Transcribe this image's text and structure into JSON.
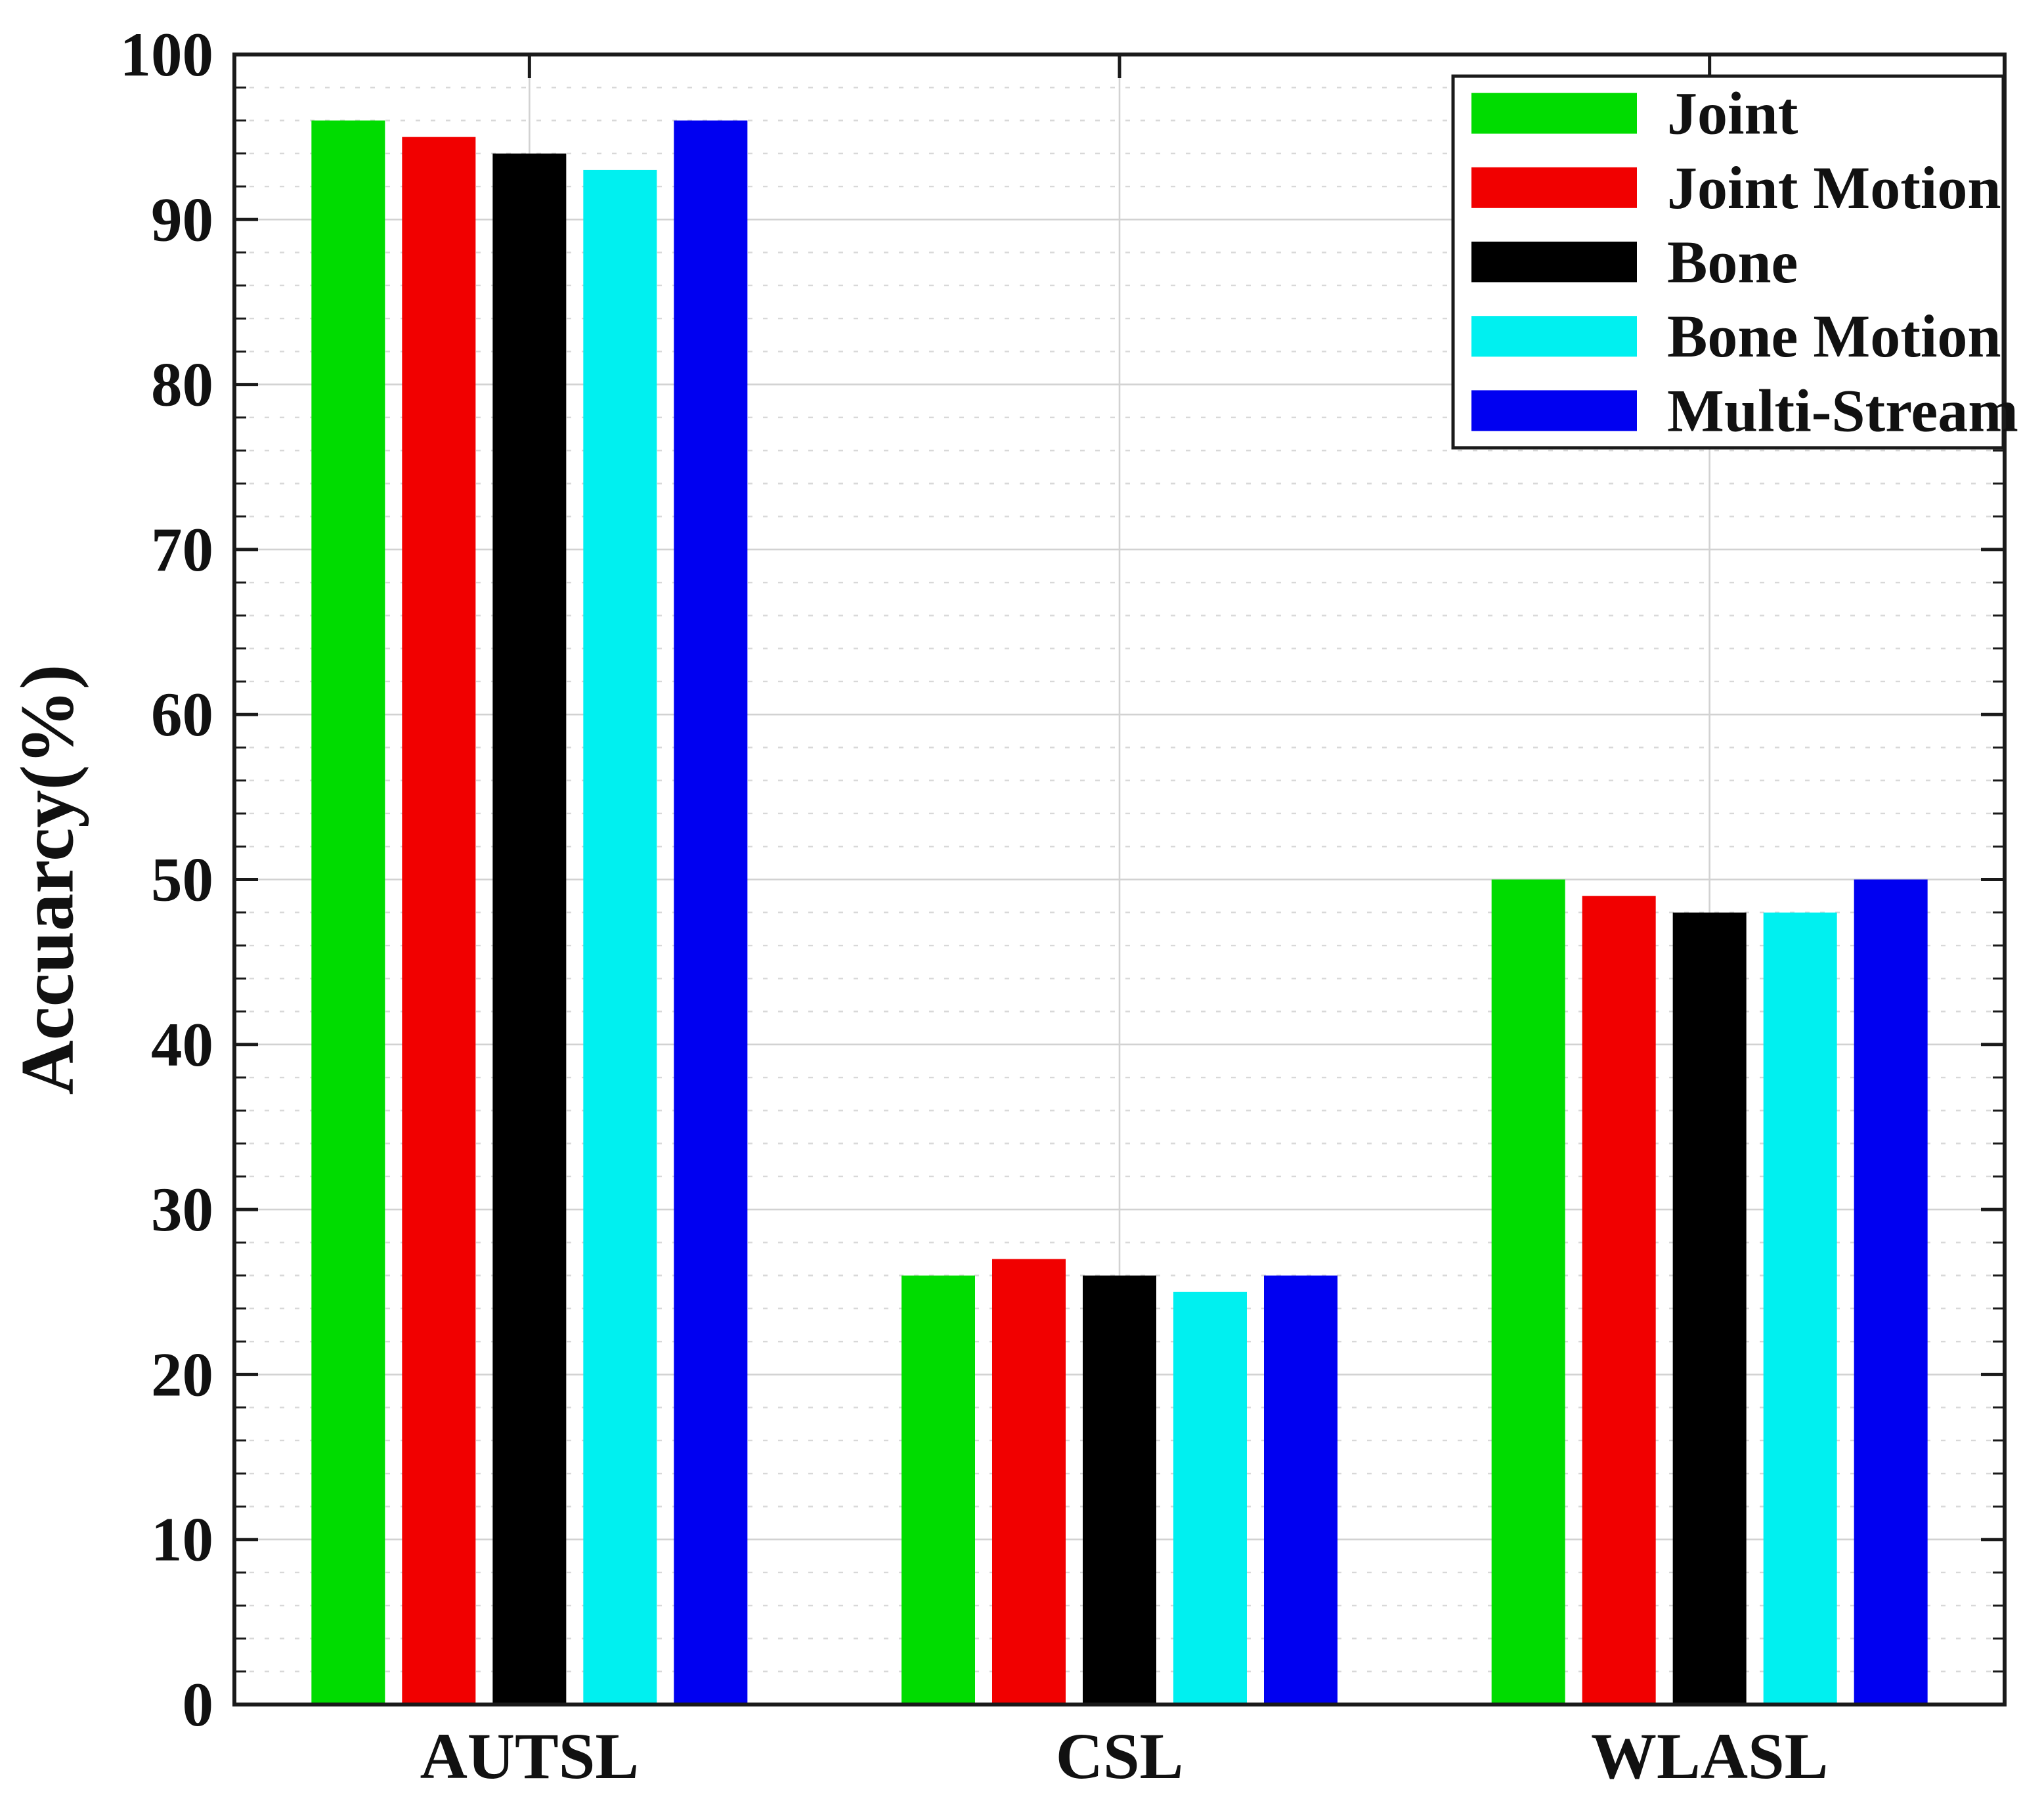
{
  "figure": {
    "ylabel": "Accuarcy(%)",
    "background": "#ffffff",
    "axis_color": "#1a1a1a",
    "major_grid_color": "#d2d2d2",
    "minor_grid_color": "#d8d8d8"
  },
  "chart_data": {
    "type": "bar",
    "title": "",
    "xlabel": "",
    "ylabel": "Accuarcy(%)",
    "categories": [
      "AUTSL",
      "CSL",
      "WLASL"
    ],
    "series": [
      {
        "name": "Joint",
        "color": "#00dc00",
        "values": [
          96,
          26,
          50
        ]
      },
      {
        "name": "Joint Motion",
        "color": "#f10000",
        "values": [
          95,
          27,
          49
        ]
      },
      {
        "name": "Bone",
        "color": "#000000",
        "values": [
          94,
          26,
          48
        ]
      },
      {
        "name": "Bone Motion",
        "color": "#00f0f0",
        "values": [
          93,
          25,
          48
        ]
      },
      {
        "name": "Multi-Stream",
        "color": "#0000f1",
        "values": [
          96,
          26,
          50
        ]
      }
    ],
    "ylim": [
      0,
      100
    ],
    "yticks": [
      0,
      10,
      20,
      30,
      40,
      50,
      60,
      70,
      80,
      90,
      100
    ],
    "minor_tick_step": 2,
    "grid": true,
    "legend_position": "top-right",
    "legend_entries": [
      "Joint",
      "Joint Motion",
      "Bone",
      "Bone Motion",
      "Multi-Stream"
    ]
  }
}
